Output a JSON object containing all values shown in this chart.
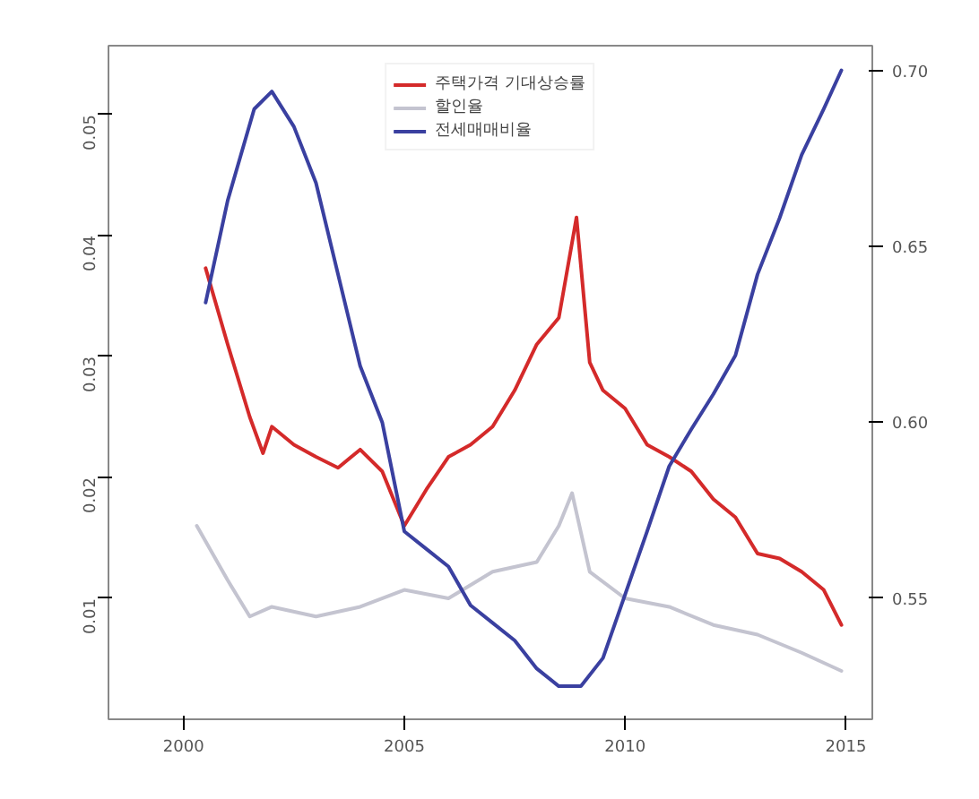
{
  "chart_data": {
    "type": "line",
    "legend": "top",
    "xlim": [
      1998.3,
      2015.6
    ],
    "xticks": [
      2000,
      2005,
      2010,
      2015
    ],
    "ylim": [
      0.0,
      0.0557
    ],
    "yticks": [
      {
        "value": 0.01,
        "label": "0.01"
      },
      {
        "value": 0.02,
        "label": "0.02"
      },
      {
        "value": 0.03,
        "label": "0.03"
      },
      {
        "value": 0.04,
        "label": "0.04"
      },
      {
        "value": 0.05,
        "label": "0.05"
      }
    ],
    "y2lim": [
      0.5156,
      0.707
    ],
    "y2ticks": [
      {
        "value": 0.55,
        "label": "0.55"
      },
      {
        "value": 0.6,
        "label": "0.60"
      },
      {
        "value": 0.65,
        "label": "0.65"
      },
      {
        "value": 0.7,
        "label": "0.70"
      }
    ],
    "series": [
      {
        "name": "주택가격 기대상승률",
        "color": "#d42a2a",
        "x": [
          2000.5,
          2001,
          2001.5,
          2001.8,
          2002,
          2002.5,
          2003,
          2003.5,
          2004,
          2004.5,
          2005,
          2005.5,
          2006,
          2006.5,
          2007,
          2007.5,
          2008,
          2008.5,
          2008.9,
          2009.2,
          2009.5,
          2010,
          2010.5,
          2011,
          2011.5,
          2012,
          2012.5,
          2013,
          2013.5,
          2014,
          2014.5,
          2014.9
        ],
        "values": [
          0.0373,
          0.031,
          0.025,
          0.022,
          0.0242,
          0.0227,
          0.0217,
          0.0208,
          0.0223,
          0.0205,
          0.016,
          0.019,
          0.0217,
          0.0227,
          0.0242,
          0.0272,
          0.031,
          0.0332,
          0.0415,
          0.0295,
          0.0272,
          0.0257,
          0.0227,
          0.0217,
          0.0205,
          0.0182,
          0.0167,
          0.0137,
          0.0133,
          0.0122,
          0.0107,
          0.0078
        ]
      },
      {
        "name": "할인율",
        "color": "#c4c4d0",
        "x": [
          2000.3,
          2001,
          2001.5,
          2002,
          2003,
          2004,
          2005,
          2006,
          2007,
          2008,
          2008.5,
          2008.8,
          2009.2,
          2010,
          2011,
          2012,
          2013,
          2014,
          2014.9
        ],
        "values": [
          0.016,
          0.0115,
          0.0085,
          0.0093,
          0.0085,
          0.0093,
          0.0107,
          0.01,
          0.0122,
          0.013,
          0.016,
          0.0187,
          0.0122,
          0.01,
          0.0093,
          0.0078,
          0.007,
          0.0055,
          0.004
        ]
      },
      {
        "name": "전세매매비율",
        "color": "#3a40a0",
        "axis": "y2",
        "x": [
          2000.5,
          2001,
          2001.3,
          2001.6,
          2002,
          2002.5,
          2003,
          2003.5,
          2004,
          2004.5,
          2005,
          2005.5,
          2006,
          2006.5,
          2007,
          2007.5,
          2008,
          2008.5,
          2009,
          2009.5,
          2010,
          2010.5,
          2011,
          2011.5,
          2012,
          2012.5,
          2013,
          2013.5,
          2014,
          2014.5,
          2014.9
        ],
        "values": [
          0.634,
          0.663,
          0.676,
          0.689,
          0.694,
          0.684,
          0.668,
          0.642,
          0.616,
          0.6,
          0.569,
          0.564,
          0.559,
          0.548,
          0.543,
          0.538,
          0.53,
          0.525,
          0.525,
          0.533,
          0.551,
          0.569,
          0.5875,
          0.598,
          0.608,
          0.619,
          0.642,
          0.658,
          0.676,
          0.689,
          0.7
        ]
      }
    ]
  }
}
